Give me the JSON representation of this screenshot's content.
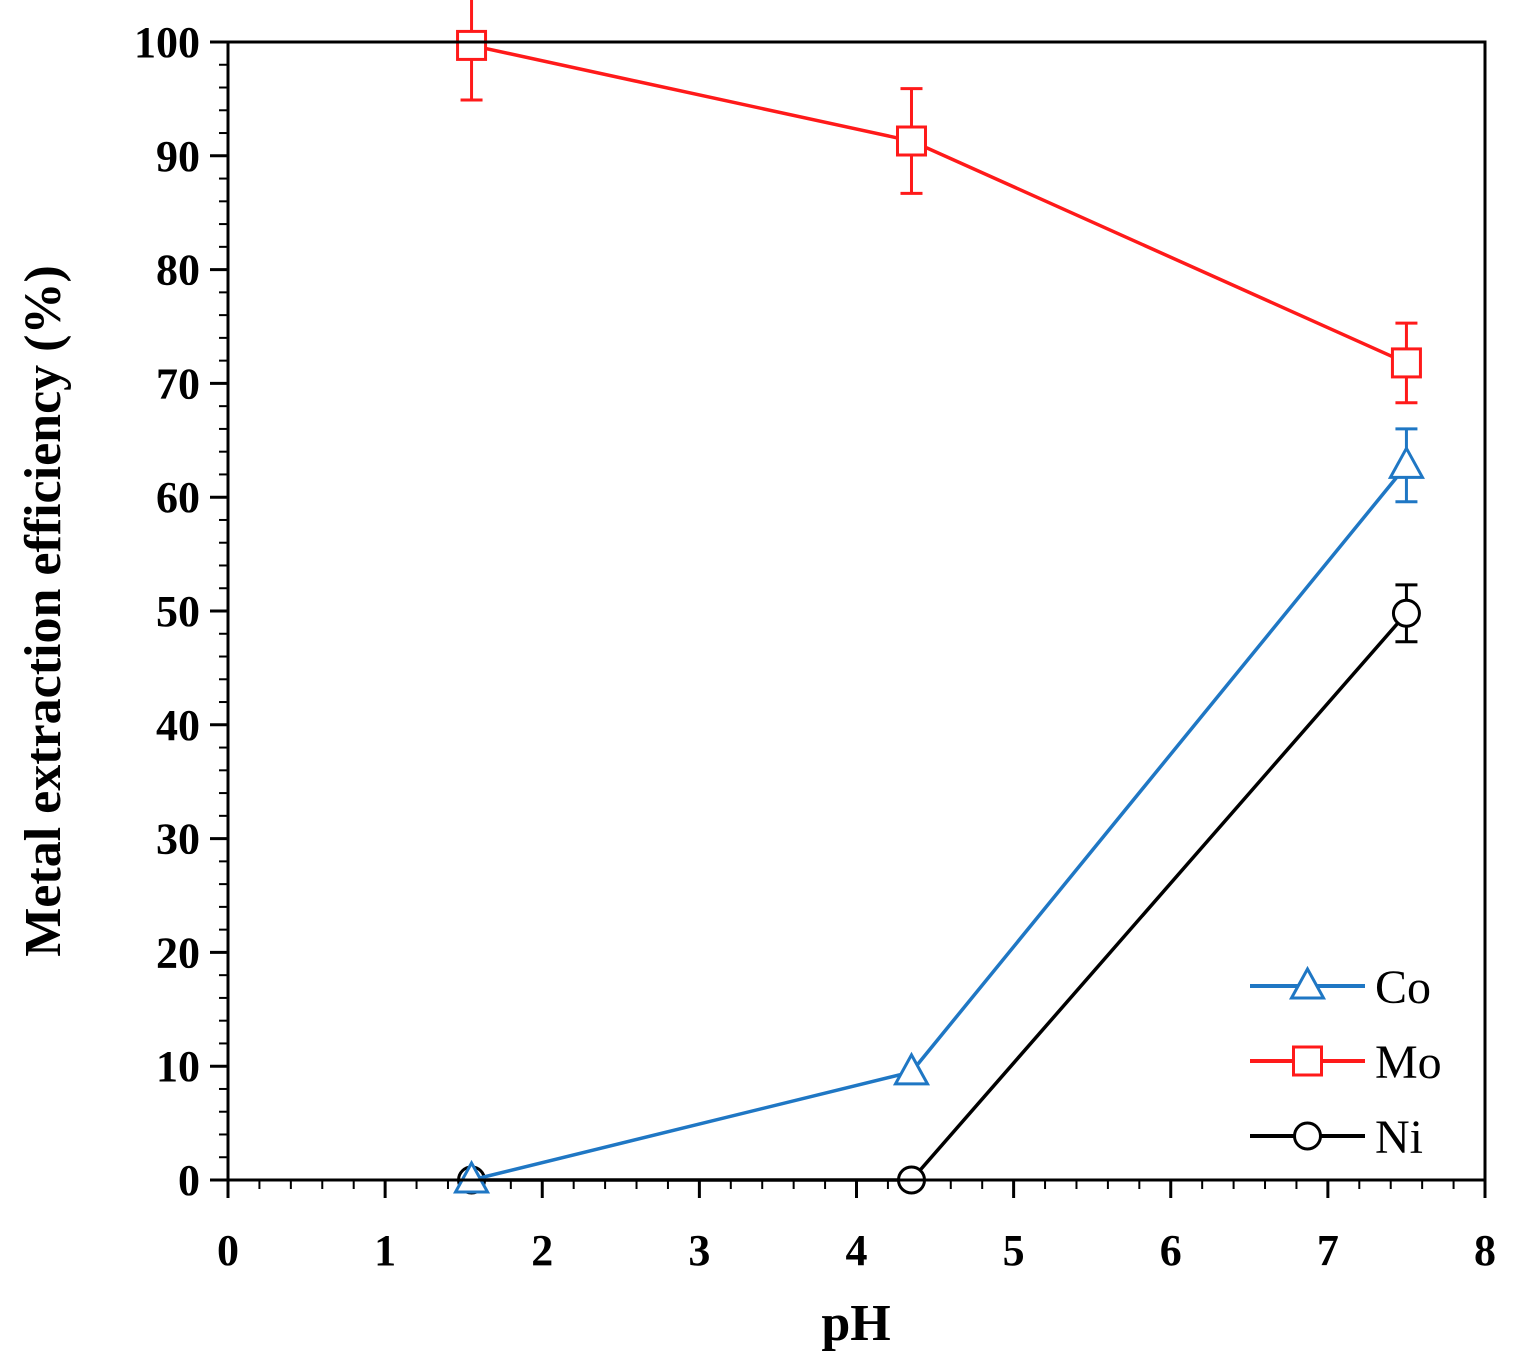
{
  "chart_data": {
    "type": "line",
    "title": "",
    "xlabel": "pH",
    "ylabel": "Metal extraction efficiency (%)",
    "xlim": [
      0,
      8
    ],
    "ylim": [
      0,
      100
    ],
    "x_ticks": [
      0,
      1,
      2,
      3,
      4,
      5,
      6,
      7,
      8
    ],
    "y_ticks": [
      0,
      10,
      20,
      30,
      40,
      50,
      60,
      70,
      80,
      90,
      100
    ],
    "x_minor_step": 0.2,
    "y_minor_step": 2,
    "grid": false,
    "legend_position": "bottom-right",
    "series": [
      {
        "name": "Co",
        "color": "#1f77c4",
        "marker": "triangle",
        "x": [
          1.55,
          4.35,
          7.5
        ],
        "y": [
          0,
          9.5,
          62.8
        ],
        "error": [
          null,
          null,
          3.2
        ]
      },
      {
        "name": "Mo",
        "color": "#ff1a1a",
        "marker": "square",
        "x": [
          1.55,
          4.35,
          7.5
        ],
        "y": [
          99.7,
          91.3,
          71.8
        ],
        "error": [
          4.8,
          4.6,
          3.5
        ]
      },
      {
        "name": "Ni",
        "color": "#000000",
        "marker": "circle",
        "x": [
          1.55,
          4.35,
          7.5
        ],
        "y": [
          0,
          0,
          49.8
        ],
        "error": [
          null,
          null,
          2.5
        ]
      }
    ]
  }
}
